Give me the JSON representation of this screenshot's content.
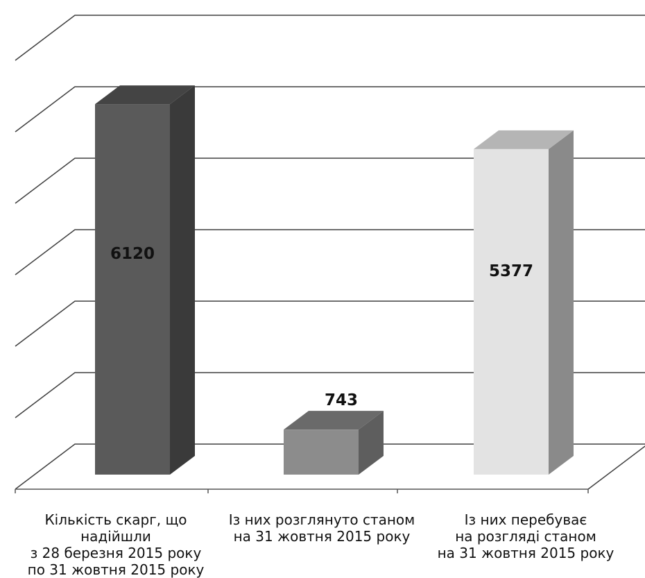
{
  "chart_data": {
    "type": "bar",
    "style": "3d",
    "categories": [
      "Кількість скарг, що надійшли\nз 28 березня 2015 року\nпо 31 жовтня 2015 року",
      "Із них розглянуто станом\nна 31 жовтня 2015 року",
      "Із них перебуває\nна розгляді станом\nна 31 жовтня 2015 року"
    ],
    "values": [
      6120,
      743,
      5377
    ],
    "value_labels": [
      "6120",
      "743",
      "5377"
    ],
    "ylim": [
      0,
      7000
    ],
    "grid": true,
    "legend": "none",
    "colors": {
      "front": [
        "#5a5a5a",
        "#8c8c8c",
        "#e3e3e3"
      ],
      "side": [
        "#3a3a3a",
        "#5e5e5e",
        "#8a8a8a"
      ],
      "top": [
        "#444444",
        "#6a6a6a",
        "#b5b5b5"
      ],
      "grid": "#3f3f3f",
      "label": "#111111"
    }
  }
}
